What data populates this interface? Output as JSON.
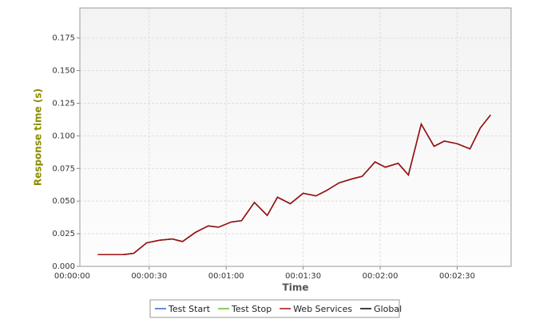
{
  "chart_data": {
    "type": "line",
    "x_label": "Time",
    "y_label": "Response time (s)",
    "x": [
      10,
      15,
      20,
      24,
      29,
      34,
      39,
      43,
      48,
      53,
      57,
      62,
      66,
      71,
      76,
      80,
      85,
      90,
      95,
      99,
      104,
      109,
      113,
      118,
      122,
      127,
      131,
      136,
      141,
      145,
      150,
      155,
      159,
      163
    ],
    "series": [
      {
        "name": "Test Start",
        "color": "#3366cc",
        "values": [
          null,
          null,
          null,
          null,
          null,
          null,
          null,
          null,
          null,
          null,
          null,
          null,
          null,
          null,
          null,
          null,
          null,
          null,
          null,
          null,
          null,
          null,
          null,
          null,
          null,
          null,
          null,
          null,
          null,
          null,
          null,
          null,
          null,
          null
        ]
      },
      {
        "name": "Test Stop",
        "color": "#66bb33",
        "values": [
          null,
          null,
          null,
          null,
          null,
          null,
          null,
          null,
          null,
          null,
          null,
          null,
          null,
          null,
          null,
          null,
          null,
          null,
          null,
          null,
          null,
          null,
          null,
          null,
          null,
          null,
          null,
          null,
          null,
          null,
          null,
          null,
          null,
          null
        ]
      },
      {
        "name": "Web Services",
        "color": "#a01010",
        "values": [
          0.009,
          0.009,
          0.009,
          0.01,
          0.018,
          0.02,
          0.021,
          0.019,
          0.026,
          0.031,
          0.03,
          0.034,
          0.035,
          0.049,
          0.039,
          0.053,
          0.048,
          0.056,
          0.054,
          0.058,
          0.064,
          0.067,
          0.069,
          0.08,
          0.076,
          0.079,
          0.07,
          0.109,
          0.092,
          0.096,
          0.094,
          0.09,
          0.106,
          0.116
        ]
      },
      {
        "name": "Global",
        "color": "#000000",
        "values": [
          0.009,
          0.009,
          0.009,
          0.01,
          0.018,
          0.02,
          0.021,
          0.019,
          0.026,
          0.031,
          0.03,
          0.034,
          0.035,
          0.049,
          0.039,
          0.053,
          0.048,
          0.056,
          0.054,
          0.058,
          0.064,
          0.067,
          0.069,
          0.08,
          0.076,
          0.079,
          0.07,
          0.109,
          0.092,
          0.096,
          0.094,
          0.09,
          0.106,
          0.116
        ]
      }
    ],
    "xlim": [
      3,
      171
    ],
    "ylim": [
      0,
      0.198
    ],
    "xticks": [
      {
        "value": 0,
        "label": "00:00:00"
      },
      {
        "value": 30,
        "label": "00:00:30"
      },
      {
        "value": 60,
        "label": "00:01:00"
      },
      {
        "value": 90,
        "label": "00:01:30"
      },
      {
        "value": 120,
        "label": "00:02:00"
      },
      {
        "value": 150,
        "label": "00:02:30"
      }
    ],
    "yticks": [
      {
        "value": 0,
        "label": "0.000"
      },
      {
        "value": 0.025,
        "label": "0.025"
      },
      {
        "value": 0.05,
        "label": "0.050"
      },
      {
        "value": 0.075,
        "label": "0.075"
      },
      {
        "value": 0.1,
        "label": "0.100"
      },
      {
        "value": 0.125,
        "label": "0.125"
      },
      {
        "value": 0.15,
        "label": "0.150"
      },
      {
        "value": 0.175,
        "label": "0.175"
      }
    ],
    "grid": true
  }
}
